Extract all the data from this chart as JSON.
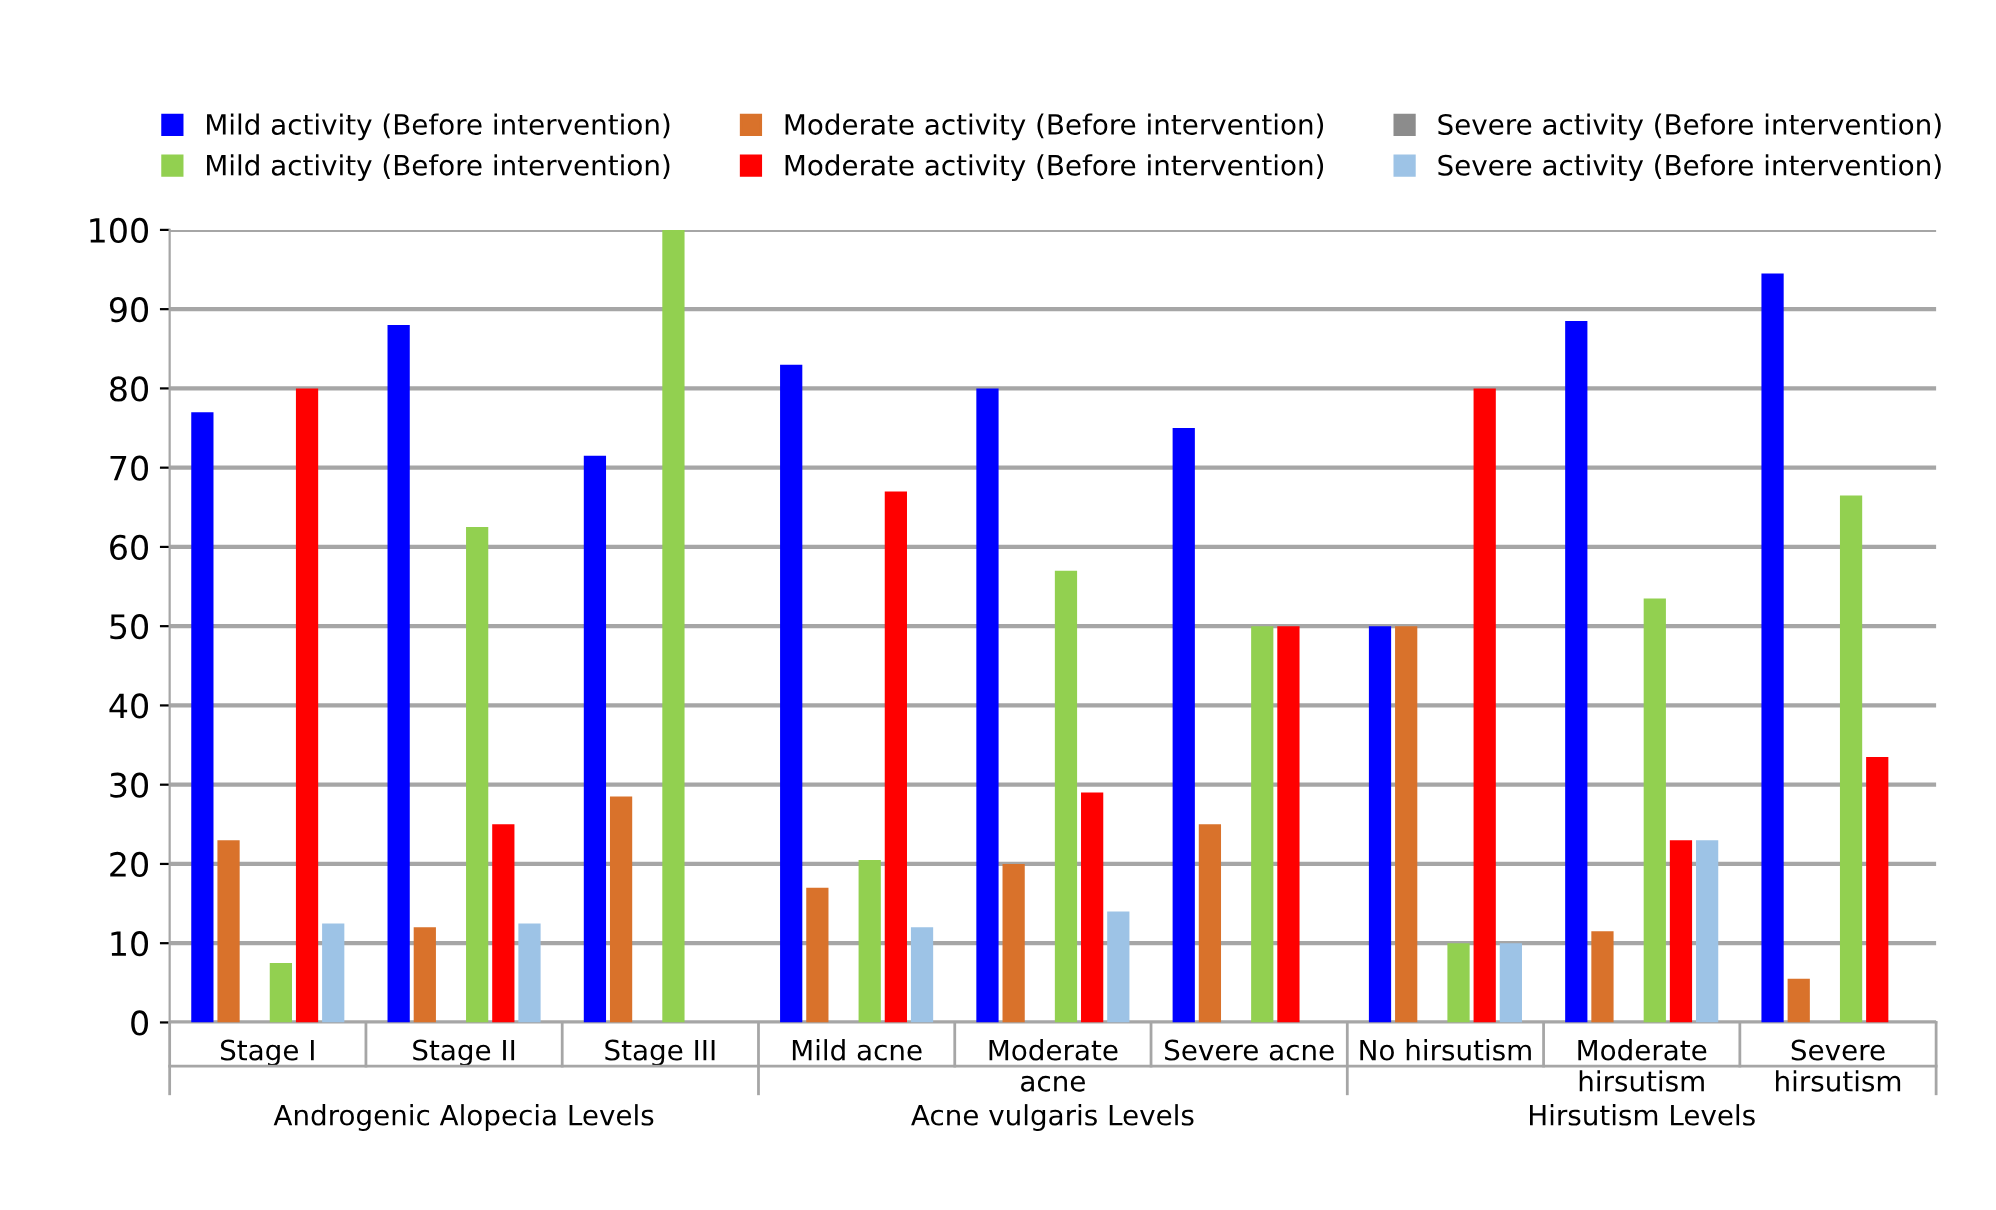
{
  "chart_data": {
    "type": "bar",
    "categories": [
      "Stage I",
      "Stage II",
      "Stage III",
      "Mild acne",
      "Moderate acne",
      "Severe acne",
      "No hirsutism",
      "Moderate hirsutism",
      "Severe hirsutism"
    ],
    "series": [
      {
        "name": "Mild activity (Before intervention)",
        "color": "#0000ff",
        "values": [
          77,
          88,
          71.5,
          83,
          80,
          75,
          50,
          88.5,
          94.5
        ]
      },
      {
        "name": "Moderate activity (Before intervention)",
        "color": "#d9722b",
        "values": [
          23,
          12,
          28.5,
          17,
          20,
          25,
          50,
          11.5,
          5.5
        ]
      },
      {
        "name": "Severe activity (Before intervention)",
        "color": "#8c8c8c",
        "values": [
          0,
          0,
          0,
          0,
          0,
          0,
          0,
          0,
          0
        ]
      },
      {
        "name": "Mild activity (Before intervention)",
        "color": "#92d050",
        "values": [
          7.5,
          62.5,
          100,
          20.5,
          57,
          50,
          10,
          53.5,
          66.5
        ]
      },
      {
        "name": "Moderate activity (Before intervention)",
        "color": "#ff0000",
        "values": [
          80,
          25,
          0,
          67,
          29,
          50,
          80,
          23,
          33.5
        ]
      },
      {
        "name": "Severe activity (Before intervention)",
        "color": "#9dc3e6",
        "values": [
          12.5,
          12.5,
          0,
          12,
          14,
          0,
          10,
          23,
          0
        ]
      }
    ],
    "ylim": [
      0,
      100
    ],
    "yticks": [
      0,
      10,
      20,
      30,
      40,
      50,
      60,
      70,
      80,
      90,
      100
    ],
    "grid": "y",
    "legend": "top",
    "annotations": [
      "Androgenic Alopecia Levels",
      "Acne vulgaris Levels",
      "Hirsutism Levels"
    ]
  }
}
